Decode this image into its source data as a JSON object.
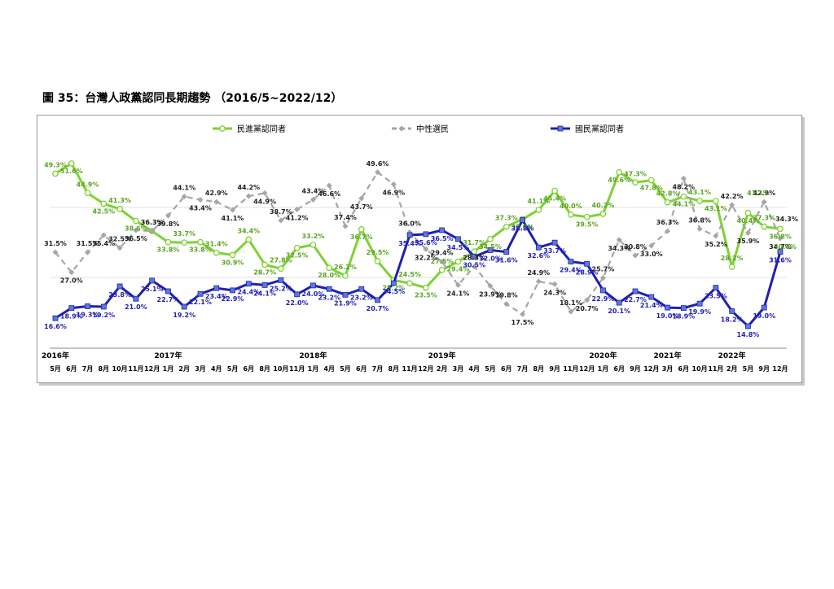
{
  "figure": {
    "title": "圖 35：台灣人政黨認同長期趨勢 （2016/5~2022/12）"
  },
  "chart_data": {
    "type": "line",
    "title": "",
    "xlabel": "",
    "ylabel": "",
    "grid": "horizontal",
    "legend_position": "top",
    "x_month_labels": [
      "5月",
      "6月",
      "7月",
      "8月",
      "10月",
      "11月",
      "12月",
      "1月",
      "2月",
      "3月",
      "4月",
      "5月",
      "6月",
      "8月",
      "10月",
      "11月",
      "1月",
      "4月",
      "5月",
      "6月",
      "7月",
      "8月",
      "11月",
      "12月",
      "2月",
      "3月",
      "4月",
      "5月",
      "6月",
      "7月",
      "8月",
      "9月",
      "11月",
      "12月",
      "1月",
      "6月",
      "9月",
      "12月",
      "3月",
      "6月",
      "10月",
      "11月",
      "2月",
      "5月",
      "9月",
      "12月"
    ],
    "x_year_labels": [
      {
        "index": 0,
        "label": "2016年"
      },
      {
        "index": 7,
        "label": "2017年"
      },
      {
        "index": 16,
        "label": "2018年"
      },
      {
        "index": 24,
        "label": "2019年"
      },
      {
        "index": 34,
        "label": "2020年"
      },
      {
        "index": 38,
        "label": "2021年"
      },
      {
        "index": 42,
        "label": "2022年"
      }
    ],
    "series": [
      {
        "name": "民進黨認同者",
        "color": "#7ed232",
        "marker": "open-circle",
        "dash": "solid",
        "label_color": "#5aa420",
        "values": [
          49.3,
          51.6,
          44.9,
          42.5,
          41.3,
          38.6,
          36.3,
          33.8,
          33.7,
          33.8,
          31.4,
          30.9,
          34.4,
          28.7,
          27.8,
          32.5,
          33.2,
          28.0,
          26.2,
          36.7,
          29.5,
          25.2,
          24.5,
          23.5,
          27.5,
          29.4,
          31.7,
          34.5,
          37.3,
          39.0,
          41.1,
          45.4,
          40.0,
          39.5,
          40.2,
          49.6,
          47.3,
          47.8,
          42.8,
          44.1,
          43.1,
          43.1,
          28.2,
          40.4,
          37.3,
          36.8
        ]
      },
      {
        "name": "中性選民",
        "color": "#a6a6a6",
        "marker": "diamond",
        "dash": "dashed",
        "label_color": "#222222",
        "values": [
          31.5,
          27.0,
          31.5,
          35.4,
          32.5,
          36.5,
          36.3,
          39.8,
          44.1,
          43.4,
          42.9,
          41.1,
          44.2,
          44.9,
          38.7,
          41.2,
          43.4,
          46.6,
          37.4,
          43.7,
          49.6,
          46.9,
          36.0,
          32.2,
          29.4,
          24.1,
          28.3,
          23.9,
          19.8,
          17.5,
          24.9,
          24.3,
          18.1,
          20.7,
          25.7,
          34.3,
          30.8,
          33.0,
          36.3,
          48.2,
          36.8,
          35.2,
          42.2,
          35.9,
          42.9,
          34.7
        ]
      },
      {
        "name": "國民黨認同者",
        "color": "#1f1fb4",
        "marker": "square",
        "dash": "solid",
        "label_color": "#1f1fb4",
        "values": [
          16.6,
          18.9,
          19.3,
          19.2,
          23.8,
          21.0,
          25.1,
          22.7,
          19.2,
          22.1,
          23.4,
          22.9,
          24.4,
          24.1,
          25.2,
          22.0,
          24.0,
          23.2,
          21.9,
          23.2,
          20.7,
          24.5,
          35.4,
          35.6,
          36.5,
          34.5,
          30.5,
          32.0,
          31.6,
          38.8,
          32.6,
          33.7,
          29.4,
          28.9,
          22.9,
          20.1,
          22.7,
          21.4,
          19.0,
          18.9,
          19.9,
          23.5,
          18.2,
          14.8,
          19.0,
          31.6
        ]
      }
    ],
    "extra_labels": [
      "41.1%",
      "34.3%",
      "30.4%"
    ]
  }
}
